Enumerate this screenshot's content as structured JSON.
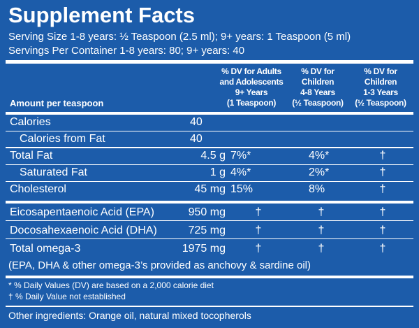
{
  "title": "Supplement Facts",
  "serving_size": "Serving Size 1-8 years: ½ Teaspoon (2.5 ml); 9+ years: 1 Teaspoon (5 ml)",
  "servings_per_container": "Servings Per Container 1-8 years: 80; 9+ years: 40",
  "table": {
    "amount_header": "Amount per teaspoon",
    "column_headers": [
      [
        "% DV for Adults",
        "and Adolescents",
        "9+ Years",
        "(1 Teaspoon)"
      ],
      [
        "% DV for",
        "Children",
        "4-8 Years",
        "(½ Teaspoon)"
      ],
      [
        "% DV for",
        "Children",
        "1-3 Years",
        "(½ Teaspoon)"
      ]
    ],
    "rows": [
      [
        "Calories",
        "40"
      ],
      [
        "Calories from Fat",
        "40"
      ],
      [
        "Total Fat",
        "4.5 g",
        "7%*",
        "4%*",
        "†"
      ],
      [
        "Saturated Fat",
        "1 g",
        "4%*",
        "2%*",
        "†"
      ],
      [
        "Cholesterol",
        "45 mg",
        "15%",
        "8%",
        "†"
      ],
      [
        "Eicosapentaenoic Acid (EPA)",
        "950 mg",
        "†",
        "†",
        "†"
      ],
      [
        "Docosahexaenoic Acid (DHA)",
        "725 mg",
        "†",
        "†",
        "†"
      ],
      [
        "Total omega-3",
        "1975 mg",
        "†",
        "†",
        "†"
      ]
    ],
    "note": "(EPA, DHA & other omega-3’s provided as anchovy & sardine oil)"
  },
  "footnotes": [
    "* % Daily Values (DV) are based on a 2,000 calorie diet",
    "† % Daily Value not established"
  ],
  "other_ingredients": "Other ingredients: Orange oil, natural mixed tocopherols"
}
